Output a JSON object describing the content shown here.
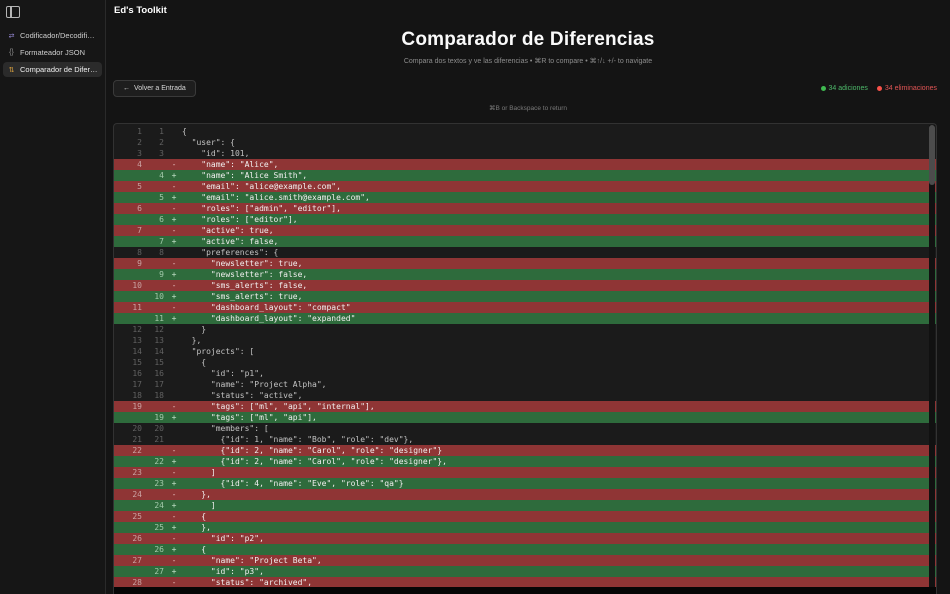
{
  "app": {
    "title": "Ed's Toolkit"
  },
  "sidebar": {
    "items": [
      {
        "label": "Codificador/Decodificado...",
        "icon": "encode-decode-icon",
        "active": false
      },
      {
        "label": "Formateador JSON",
        "icon": "json-braces-icon",
        "active": false
      },
      {
        "label": "Comparador de Diferen...",
        "icon": "diff-compare-icon",
        "active": true
      }
    ]
  },
  "header": {
    "title": "Comparador de Diferencias",
    "subtitle": "Compara dos textos y ve las diferencias • ⌘R to compare • ⌘↑/↓ +/- to navigate"
  },
  "toolbar": {
    "back_icon": "←",
    "back_label": "Volver a Entrada",
    "additions_label": "34 adiciones",
    "deletions_label": "34 eliminaciones",
    "hint": "⌘B or Backspace to return"
  },
  "colors": {
    "addition_bg": "#2e6b3c",
    "deletion_bg": "#8f3535",
    "addition_accent": "#3fb950",
    "deletion_accent": "#f85149"
  },
  "diff": {
    "rows": [
      {
        "old": "1",
        "new": "1",
        "sign": "",
        "type": "ctx",
        "text": "{"
      },
      {
        "old": "2",
        "new": "2",
        "sign": "",
        "type": "ctx",
        "text": "  \"user\": {"
      },
      {
        "old": "3",
        "new": "3",
        "sign": "",
        "type": "ctx",
        "text": "    \"id\": 101,"
      },
      {
        "old": "4",
        "new": "",
        "sign": "-",
        "type": "del",
        "text": "    \"name\": \"Alice\","
      },
      {
        "old": "",
        "new": "4",
        "sign": "+",
        "type": "add",
        "text": "    \"name\": \"Alice Smith\","
      },
      {
        "old": "5",
        "new": "",
        "sign": "-",
        "type": "del",
        "text": "    \"email\": \"alice@example.com\","
      },
      {
        "old": "",
        "new": "5",
        "sign": "+",
        "type": "add",
        "text": "    \"email\": \"alice.smith@example.com\","
      },
      {
        "old": "6",
        "new": "",
        "sign": "-",
        "type": "del",
        "text": "    \"roles\": [\"admin\", \"editor\"],"
      },
      {
        "old": "",
        "new": "6",
        "sign": "+",
        "type": "add",
        "text": "    \"roles\": [\"editor\"],"
      },
      {
        "old": "7",
        "new": "",
        "sign": "-",
        "type": "del",
        "text": "    \"active\": true,"
      },
      {
        "old": "",
        "new": "7",
        "sign": "+",
        "type": "add",
        "text": "    \"active\": false,"
      },
      {
        "old": "8",
        "new": "8",
        "sign": "",
        "type": "ctx",
        "text": "    \"preferences\": {"
      },
      {
        "old": "9",
        "new": "",
        "sign": "-",
        "type": "del",
        "text": "      \"newsletter\": true,"
      },
      {
        "old": "",
        "new": "9",
        "sign": "+",
        "type": "add",
        "text": "      \"newsletter\": false,"
      },
      {
        "old": "10",
        "new": "",
        "sign": "-",
        "type": "del",
        "text": "      \"sms_alerts\": false,"
      },
      {
        "old": "",
        "new": "10",
        "sign": "+",
        "type": "add",
        "text": "      \"sms_alerts\": true,"
      },
      {
        "old": "11",
        "new": "",
        "sign": "-",
        "type": "del",
        "text": "      \"dashboard_layout\": \"compact\""
      },
      {
        "old": "",
        "new": "11",
        "sign": "+",
        "type": "add",
        "text": "      \"dashboard_layout\": \"expanded\""
      },
      {
        "old": "12",
        "new": "12",
        "sign": "",
        "type": "ctx",
        "text": "    }"
      },
      {
        "old": "13",
        "new": "13",
        "sign": "",
        "type": "ctx",
        "text": "  },"
      },
      {
        "old": "14",
        "new": "14",
        "sign": "",
        "type": "ctx",
        "text": "  \"projects\": ["
      },
      {
        "old": "15",
        "new": "15",
        "sign": "",
        "type": "ctx",
        "text": "    {"
      },
      {
        "old": "16",
        "new": "16",
        "sign": "",
        "type": "ctx",
        "text": "      \"id\": \"p1\","
      },
      {
        "old": "17",
        "new": "17",
        "sign": "",
        "type": "ctx",
        "text": "      \"name\": \"Project Alpha\","
      },
      {
        "old": "18",
        "new": "18",
        "sign": "",
        "type": "ctx",
        "text": "      \"status\": \"active\","
      },
      {
        "old": "19",
        "new": "",
        "sign": "-",
        "type": "del",
        "text": "      \"tags\": [\"ml\", \"api\", \"internal\"],"
      },
      {
        "old": "",
        "new": "19",
        "sign": "+",
        "type": "add",
        "text": "      \"tags\": [\"ml\", \"api\"],"
      },
      {
        "old": "20",
        "new": "20",
        "sign": "",
        "type": "ctx",
        "text": "      \"members\": ["
      },
      {
        "old": "21",
        "new": "21",
        "sign": "",
        "type": "ctx",
        "text": "        {\"id\": 1, \"name\": \"Bob\", \"role\": \"dev\"},"
      },
      {
        "old": "22",
        "new": "",
        "sign": "-",
        "type": "del",
        "text": "        {\"id\": 2, \"name\": \"Carol\", \"role\": \"designer\"}"
      },
      {
        "old": "",
        "new": "22",
        "sign": "+",
        "type": "add",
        "text": "        {\"id\": 2, \"name\": \"Carol\", \"role\": \"designer\"},"
      },
      {
        "old": "23",
        "new": "",
        "sign": "-",
        "type": "del",
        "text": "      ]"
      },
      {
        "old": "",
        "new": "23",
        "sign": "+",
        "type": "add",
        "text": "        {\"id\": 4, \"name\": \"Eve\", \"role\": \"qa\"}"
      },
      {
        "old": "24",
        "new": "",
        "sign": "-",
        "type": "del",
        "text": "    },"
      },
      {
        "old": "",
        "new": "24",
        "sign": "+",
        "type": "add",
        "text": "      ]"
      },
      {
        "old": "25",
        "new": "",
        "sign": "-",
        "type": "del",
        "text": "    {"
      },
      {
        "old": "",
        "new": "25",
        "sign": "+",
        "type": "add",
        "text": "    },"
      },
      {
        "old": "26",
        "new": "",
        "sign": "-",
        "type": "del",
        "text": "      \"id\": \"p2\","
      },
      {
        "old": "",
        "new": "26",
        "sign": "+",
        "type": "add",
        "text": "    {"
      },
      {
        "old": "27",
        "new": "",
        "sign": "-",
        "type": "del",
        "text": "      \"name\": \"Project Beta\","
      },
      {
        "old": "",
        "new": "27",
        "sign": "+",
        "type": "add",
        "text": "      \"id\": \"p3\","
      },
      {
        "old": "28",
        "new": "",
        "sign": "-",
        "type": "del",
        "text": "      \"status\": \"archived\","
      }
    ]
  }
}
